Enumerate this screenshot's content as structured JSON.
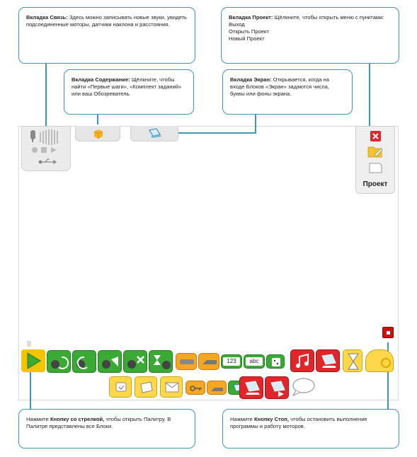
{
  "callouts": {
    "link": {
      "title": "Вкладка Связь:",
      "text": " Здесь можно записывать новые звуки, увидеть подсоединенные моторы, датчики наклона и расстояния."
    },
    "project": {
      "title": "Вкладка Проект:",
      "text": " Щёлкните, чтобы открыть меню с пунктами:",
      "items": [
        "Выход",
        "Открыть Проект",
        "Новый Проект"
      ]
    },
    "content": {
      "title": "Вкладка Содержание:",
      "text": " Щёлкните, чтобы найти «Первые шаги», «Комплект заданий» или ваш Обозреватель."
    },
    "display": {
      "title": "Вкладка Экран:",
      "text": " Открывается, когда на входе Блоков «Экран» задаются числа, буквы или фоны экрана."
    },
    "start": {
      "prefix": "Нажмите ",
      "title": "Кнопку со стрелкой,",
      "text": " чтобы открыть Палитру. В Палитре представлены все Блоки."
    },
    "stop": {
      "prefix": "Нажмите ",
      "title": "Кнопку Стоп,",
      "text": " чтобы остановить выполнение программы и работу моторов."
    }
  },
  "project_panel": {
    "label": "Проект"
  },
  "palette": {
    "number_label": "123",
    "text_label": "abc"
  },
  "colors": {
    "accent": "#3a9ab3",
    "green": "#3aaa35",
    "orange": "#f5a623",
    "yellow": "#ffd84a",
    "red": "#e0262a",
    "stop_red": "#cc1111"
  }
}
